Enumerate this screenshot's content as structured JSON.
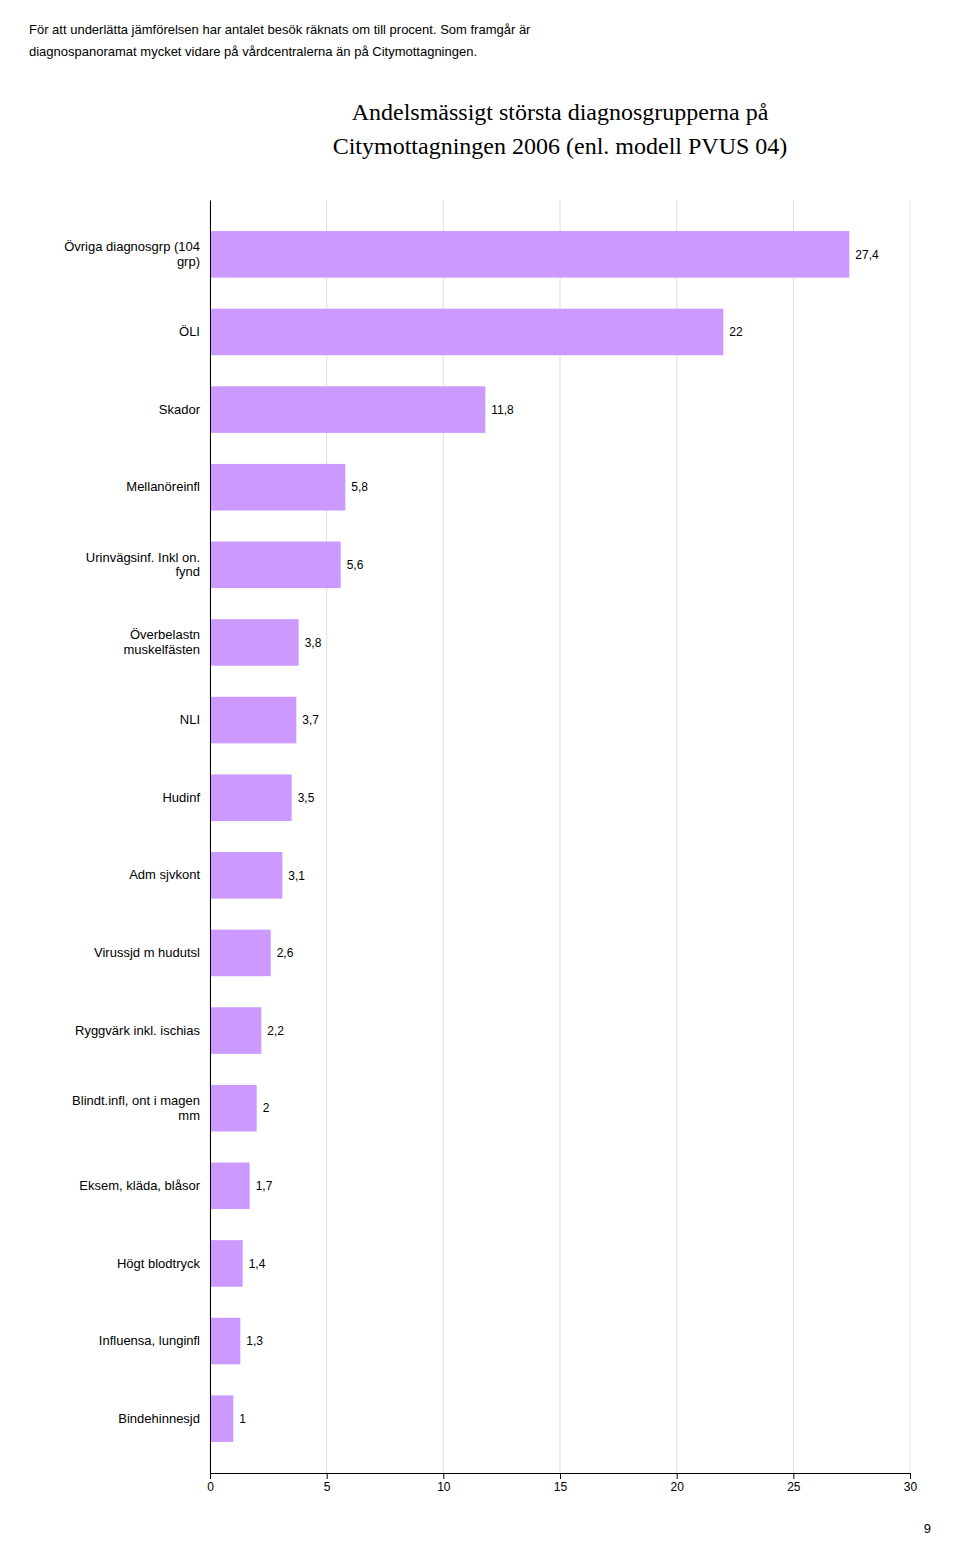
{
  "chart_data": {
    "type": "bar",
    "orientation": "horizontal",
    "title": [
      "Andelsmässigt största diagnosgrupperna på",
      "Citymottagningen 2006 (enl. modell PVUS 04)"
    ],
    "annotations": [
      "För att underlätta jämförelsen har antalet besök räknats om till procent. Som framgår är",
      "diagnospanoramat mycket vidare på vårdcentralerna än på Citymottagningen.",
      "9"
    ],
    "categories": [
      "Övriga diagnosgrp (104\ngrp)",
      "ÖLI",
      "Skador",
      "Mellanöreinfl",
      "Urinvägsinf. Inkl on.\nfynd",
      "Överbelastn\nmuskelfästen",
      "NLI",
      "Hudinf",
      "Adm sjvkont",
      "Virussjd m hudutsl",
      "Ryggvärk inkl. ischias",
      "Blindt.infl, ont i magen\nmm",
      "Eksem, kläda, blåsor",
      "Högt blodtryck",
      "Influensa, lunginfl",
      "Bindehinnesjd"
    ],
    "values": [
      27.4,
      22,
      11.8,
      5.8,
      5.6,
      3.8,
      3.7,
      3.5,
      3.1,
      2.6,
      2.2,
      2,
      1.7,
      1.4,
      1.3,
      1
    ],
    "value_labels": [
      "27,4",
      "22",
      "11,8",
      "5,8",
      "5,6",
      "3,8",
      "3,7",
      "3,5",
      "3,1",
      "2,6",
      "2,2",
      "2",
      "1,7",
      "1,4",
      "1,3",
      "1"
    ],
    "data_labels": true,
    "color": "#cc99ff",
    "xlim": [
      0,
      30
    ],
    "xticks": [
      0,
      5,
      10,
      15,
      20,
      25,
      30
    ],
    "grid": true
  }
}
